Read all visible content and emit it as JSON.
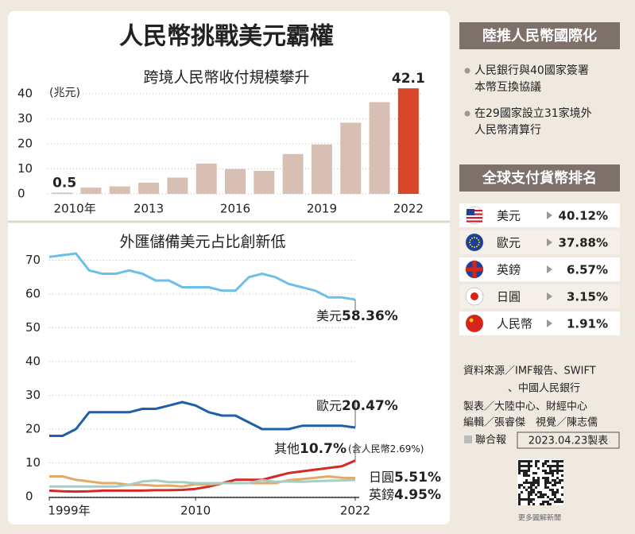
{
  "title": "人民幣挑戰美元霸權",
  "chart_data": [
    {
      "type": "bar",
      "title": "跨境人民幣收付規模攀升",
      "y_unit": "(兆元)",
      "categories": [
        "2010年",
        null,
        null,
        "2013",
        null,
        null,
        "2016",
        null,
        null,
        "2019",
        null,
        null,
        "2022"
      ],
      "values": [
        0.5,
        2.5,
        3.0,
        4.5,
        6.5,
        12.1,
        9.9,
        9.2,
        15.9,
        19.7,
        28.4,
        36.6,
        42.1
      ],
      "colors": [
        "#d8bfb4",
        "#d8bfb4",
        "#d8bfb4",
        "#d8bfb4",
        "#d8bfb4",
        "#d8bfb4",
        "#d8bfb4",
        "#d8bfb4",
        "#d8bfb4",
        "#d8bfb4",
        "#d8bfb4",
        "#d8bfb4",
        "#d9462a"
      ],
      "labeled_values": [
        0,
        12
      ],
      "ylim": [
        0,
        45
      ],
      "yticks": [
        0,
        10,
        20,
        30,
        40
      ],
      "grid": true
    },
    {
      "type": "line",
      "title": "外匯儲備美元占比創新低",
      "x": [
        1999,
        2000,
        2001,
        2002,
        2003,
        2004,
        2005,
        2006,
        2007,
        2008,
        2009,
        2010,
        2011,
        2012,
        2013,
        2014,
        2015,
        2016,
        2017,
        2018,
        2019,
        2020,
        2021,
        2022
      ],
      "xlim": [
        1999,
        2022
      ],
      "xticks": [
        {
          "value": 1999,
          "label": "1999年"
        },
        2010,
        2022
      ],
      "ylim": [
        0,
        72
      ],
      "yticks": [
        0,
        10,
        20,
        30,
        40,
        50,
        60,
        70
      ],
      "grid": true,
      "series": [
        {
          "name": "美元",
          "color": "#6cbfe8",
          "values": [
            71,
            71.5,
            72,
            67,
            66,
            66,
            67,
            66,
            64,
            64,
            62,
            62,
            62,
            61,
            61,
            65,
            66,
            65,
            63,
            62,
            61,
            59,
            59,
            58.36
          ],
          "value_labels": [
            null,
            null,
            null,
            null,
            null,
            null,
            null,
            null,
            null,
            null,
            null,
            null,
            null,
            null,
            null,
            null,
            null,
            null,
            null,
            null,
            null,
            null,
            null,
            "58.36%"
          ]
        },
        {
          "name": "歐元",
          "color": "#1f5fa8",
          "values": [
            18,
            18,
            20,
            25,
            25,
            25,
            25,
            26,
            26,
            27,
            28,
            27,
            25,
            24,
            24,
            22,
            20,
            20,
            20,
            21,
            21,
            21,
            21,
            20.47
          ],
          "value_labels": [
            null,
            null,
            null,
            null,
            null,
            null,
            null,
            null,
            null,
            null,
            null,
            null,
            null,
            null,
            null,
            null,
            null,
            null,
            null,
            null,
            null,
            null,
            null,
            "20.47%"
          ]
        },
        {
          "name": "其他",
          "color": "#d42a26",
          "values": [
            1.8,
            1.6,
            1.5,
            1.6,
            1.8,
            1.8,
            1.8,
            1.8,
            1.9,
            1.9,
            2,
            2.3,
            3,
            4,
            5,
            5,
            5,
            6,
            7,
            7.5,
            8,
            8.5,
            9,
            10.7
          ],
          "value_labels": [
            null,
            null,
            null,
            null,
            null,
            null,
            null,
            null,
            null,
            null,
            null,
            null,
            null,
            null,
            null,
            null,
            null,
            null,
            null,
            null,
            null,
            null,
            null,
            "10.7%"
          ],
          "note": "(含人民幣2.69%)"
        },
        {
          "name": "日圓",
          "color": "#e2a968",
          "values": [
            6,
            6,
            5,
            4.5,
            4,
            4,
            3.5,
            3.5,
            3.2,
            3.3,
            3,
            3.7,
            3.6,
            4,
            4,
            4,
            4,
            4,
            4.9,
            5.2,
            5.6,
            6,
            5.6,
            5.51
          ],
          "value_labels": [
            null,
            null,
            null,
            null,
            null,
            null,
            null,
            null,
            null,
            null,
            null,
            null,
            null,
            null,
            null,
            null,
            null,
            null,
            null,
            null,
            null,
            null,
            null,
            "5.51%"
          ]
        },
        {
          "name": "英鎊",
          "color": "#a6cfc4",
          "values": [
            3,
            3,
            3,
            3,
            3,
            3,
            3.5,
            4.5,
            4.8,
            4.3,
            4.3,
            4,
            4,
            4,
            4,
            4,
            4.9,
            4.4,
            4.5,
            4.4,
            4.6,
            4.7,
            4.8,
            4.95
          ],
          "value_labels": [
            null,
            null,
            null,
            null,
            null,
            null,
            null,
            null,
            null,
            null,
            null,
            null,
            null,
            null,
            null,
            null,
            null,
            null,
            null,
            null,
            null,
            null,
            null,
            "4.95%"
          ]
        }
      ]
    }
  ],
  "sidebar": {
    "policy": {
      "heading": "陸推人民幣國際化",
      "bullets": [
        [
          "人民銀行與40國家簽署",
          "本幣互換協議"
        ],
        [
          "在29國家設立31家境外",
          "人民幣清算行"
        ]
      ]
    },
    "ranking": {
      "heading": "全球支付貨幣排名",
      "rows": [
        {
          "name": "美元",
          "share": "40.12%"
        },
        {
          "name": "歐元",
          "share": "37.88%"
        },
        {
          "name": "英鎊",
          "share": "6.57%"
        },
        {
          "name": "日圓",
          "share": "3.15%"
        },
        {
          "name": "人民幣",
          "share": "1.91%"
        }
      ]
    },
    "source": [
      "資料來源／IMF報告、SWIFT",
      "、中國人民銀行"
    ],
    "credits": [
      "製表／大陸中心、財經中心",
      "編輯／張睿傑　視覺／陳志儒"
    ],
    "publisher": "聯合報",
    "date": "2023.04.23製表",
    "qr_caption": "更多圖解新聞"
  }
}
